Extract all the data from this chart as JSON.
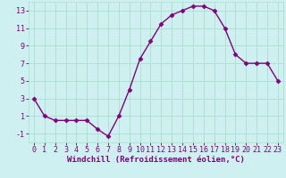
{
  "x": [
    0,
    1,
    2,
    3,
    4,
    5,
    6,
    7,
    8,
    9,
    10,
    11,
    12,
    13,
    14,
    15,
    16,
    17,
    18,
    19,
    20,
    21,
    22,
    23
  ],
  "y": [
    3,
    1,
    0.5,
    0.5,
    0.5,
    0.5,
    -0.5,
    -1.3,
    1,
    4,
    7.5,
    9.5,
    11.5,
    12.5,
    13,
    13.5,
    13.5,
    13,
    11,
    8,
    7,
    7,
    7,
    5
  ],
  "line_color": "#800080",
  "marker": "D",
  "marker_size": 2.5,
  "bg_color": "#cff0f0",
  "grid_color": "#aaddcc",
  "xlabel": "Windchill (Refroidissement éolien,°C)",
  "xlabel_color": "#800080",
  "xlabel_fontsize": 6.5,
  "tick_color": "#800080",
  "ylim": [
    -2,
    14
  ],
  "yticks": [
    -1,
    1,
    3,
    5,
    7,
    9,
    11,
    13
  ],
  "xlim": [
    -0.5,
    23.5
  ],
  "xticks": [
    0,
    1,
    2,
    3,
    4,
    5,
    6,
    7,
    8,
    9,
    10,
    11,
    12,
    13,
    14,
    15,
    16,
    17,
    18,
    19,
    20,
    21,
    22,
    23
  ],
  "tick_fontsize": 6.0,
  "linewidth": 1.0
}
